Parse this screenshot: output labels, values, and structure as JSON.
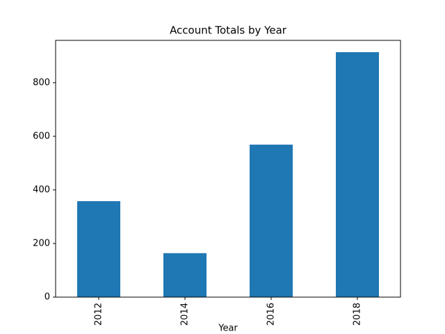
{
  "chart_data": {
    "type": "bar",
    "title": "Account Totals by Year",
    "x_label": "Year",
    "categories": [
      "2012",
      "2014",
      "2016",
      "2018"
    ],
    "values": [
      358,
      164,
      569,
      914
    ],
    "color": "#1f77b4",
    "ylim": [
      0,
      958
    ],
    "yticks": [
      0,
      200,
      400,
      600,
      800
    ],
    "grid": false
  }
}
